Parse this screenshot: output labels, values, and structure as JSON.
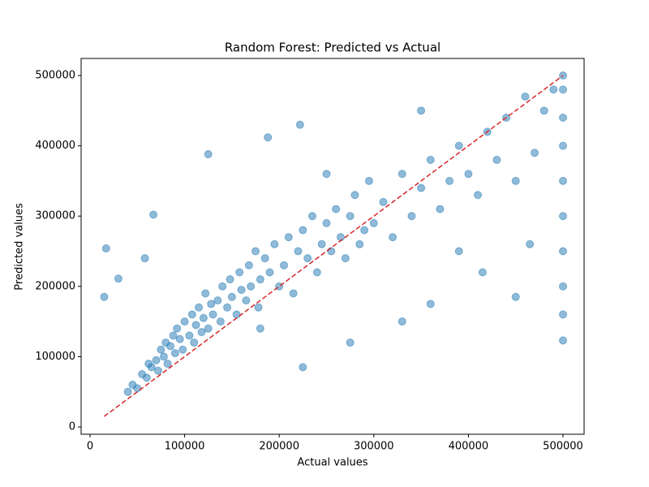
{
  "chart_data": {
    "type": "scatter",
    "title": "Random Forest: Predicted vs Actual",
    "x_label": "Actual values",
    "y_label": "Predicted values",
    "xlim": [
      -9400,
      522300
    ],
    "ylim": [
      -10400,
      524300
    ],
    "xticks": [
      0,
      100000,
      200000,
      300000,
      400000,
      500000
    ],
    "yticks": [
      0,
      100000,
      200000,
      300000,
      400000,
      500000
    ],
    "reference_line": {
      "x": [
        15000,
        500001
      ],
      "y": [
        15000,
        500001
      ],
      "color": "#d62728"
    },
    "series": [
      {
        "color": "#1f77b4",
        "x": [
          15000,
          17000,
          30000,
          67000,
          58000,
          125000,
          188000,
          222000,
          450000,
          500001,
          40000,
          45000,
          50000,
          55000,
          60000,
          62000,
          65000,
          70000,
          72000,
          75000,
          78000,
          80000,
          82000,
          85000,
          88000,
          90000,
          92000,
          95000,
          98000,
          100000,
          105000,
          108000,
          110000,
          112000,
          115000,
          118000,
          120000,
          122000,
          125000,
          128000,
          130000,
          135000,
          138000,
          140000,
          145000,
          148000,
          150000,
          155000,
          158000,
          160000,
          165000,
          168000,
          170000,
          175000,
          178000,
          180000,
          185000,
          190000,
          195000,
          200000,
          205000,
          210000,
          215000,
          220000,
          225000,
          230000,
          235000,
          240000,
          245000,
          250000,
          255000,
          260000,
          265000,
          270000,
          275000,
          280000,
          285000,
          290000,
          295000,
          300000,
          310000,
          320000,
          330000,
          340000,
          350000,
          360000,
          370000,
          380000,
          390000,
          400000,
          410000,
          420000,
          430000,
          440000,
          450000,
          460000,
          470000,
          480000,
          490000,
          500001,
          500001,
          500001,
          500001,
          500001,
          500001,
          500001,
          500001,
          500001,
          225000,
          275000,
          330000,
          360000,
          390000,
          415000,
          465000,
          350000,
          180000,
          250000
        ],
        "values": [
          185000,
          254000,
          211000,
          302000,
          240000,
          388000,
          412000,
          430000,
          185000,
          123000,
          50000,
          60000,
          55000,
          75000,
          70000,
          90000,
          85000,
          95000,
          80000,
          110000,
          100000,
          120000,
          90000,
          115000,
          130000,
          105000,
          140000,
          125000,
          110000,
          150000,
          130000,
          160000,
          120000,
          145000,
          170000,
          135000,
          155000,
          190000,
          140000,
          175000,
          160000,
          180000,
          150000,
          200000,
          170000,
          210000,
          185000,
          160000,
          220000,
          195000,
          180000,
          230000,
          200000,
          250000,
          170000,
          210000,
          240000,
          220000,
          260000,
          200000,
          230000,
          270000,
          190000,
          250000,
          280000,
          240000,
          300000,
          220000,
          260000,
          290000,
          250000,
          310000,
          270000,
          240000,
          300000,
          330000,
          260000,
          280000,
          350000,
          290000,
          320000,
          270000,
          360000,
          300000,
          340000,
          380000,
          310000,
          350000,
          400000,
          360000,
          330000,
          420000,
          380000,
          440000,
          350000,
          470000,
          390000,
          450000,
          480000,
          500000,
          480000,
          440000,
          400000,
          350000,
          300000,
          250000,
          200000,
          160000,
          85000,
          120000,
          150000,
          175000,
          250000,
          220000,
          260000,
          450000,
          140000,
          360000
        ]
      }
    ]
  }
}
